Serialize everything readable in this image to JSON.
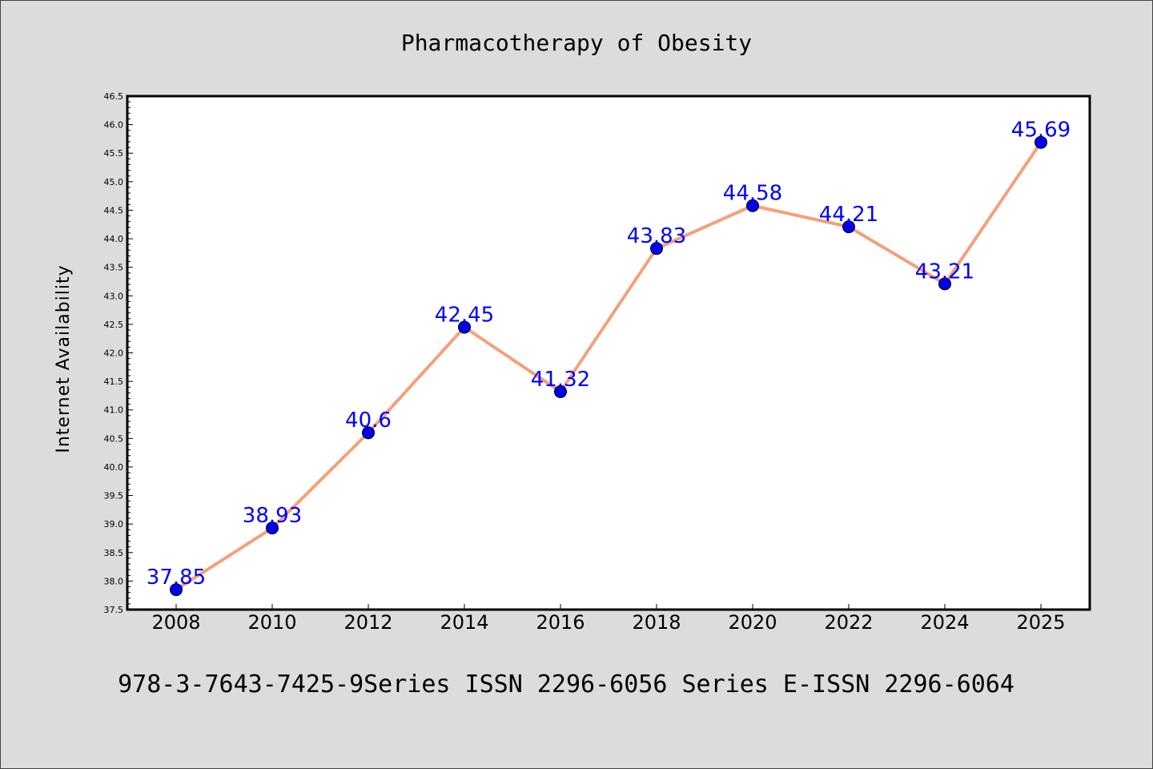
{
  "chart_data": {
    "type": "line",
    "title": "Pharmacotherapy of Obesity",
    "xlabel": "",
    "ylabel": "Internet Availability",
    "footer": "978-3-7643-7425-9Series ISSN 2296-6056 Series E-ISSN 2296-6064",
    "categories": [
      "2008",
      "2010",
      "2012",
      "2014",
      "2016",
      "2018",
      "2020",
      "2022",
      "2024",
      "2025"
    ],
    "series": [
      {
        "values": [
          37.85,
          38.93,
          40.6,
          42.45,
          41.32,
          43.83,
          44.58,
          44.21,
          43.21,
          45.69
        ],
        "labels": [
          "37.85",
          "38.93",
          "40.6",
          "42.45",
          "41.32",
          "43.83",
          "44.58",
          "44.21",
          "43.21",
          "45.69"
        ],
        "line_color": "#f4a07c",
        "marker_color": "#0000ee",
        "label_color": "#0000ff"
      }
    ],
    "ylim": [
      37.5,
      46.5
    ],
    "yticks": [
      "37.5",
      "38.0",
      "38.5",
      "39.0",
      "39.5",
      "40.0",
      "40.5",
      "41.0",
      "41.5",
      "42.0",
      "42.5",
      "43.0",
      "43.5",
      "44.0",
      "44.5",
      "45.0",
      "45.5",
      "46.0",
      "46.5"
    ],
    "grid": false,
    "legend": "none"
  },
  "colors": {
    "background": "#dcdcdc",
    "plot_background": "#ffffff"
  }
}
